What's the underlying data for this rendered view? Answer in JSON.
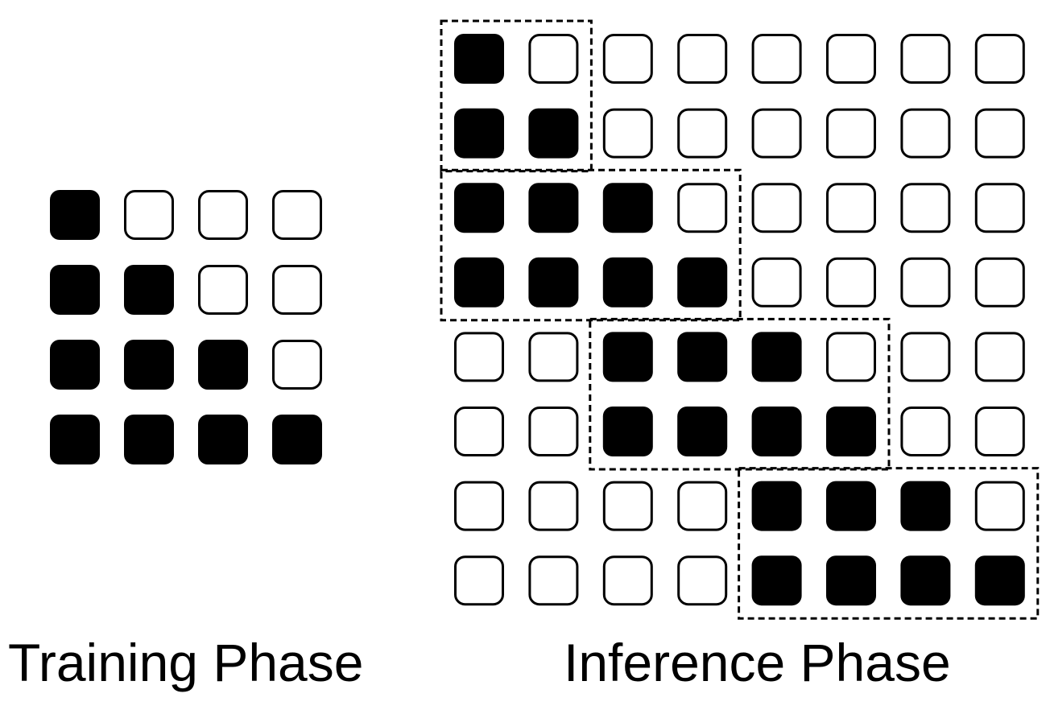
{
  "colors": {
    "filled": "#000000",
    "empty": "#ffffff",
    "stroke": "#000000"
  },
  "training": {
    "caption": "Training Phase",
    "grid": [
      [
        1,
        0,
        0,
        0
      ],
      [
        1,
        1,
        0,
        0
      ],
      [
        1,
        1,
        1,
        0
      ],
      [
        1,
        1,
        1,
        1
      ]
    ]
  },
  "inference": {
    "caption": "Inference Phase",
    "grid": [
      [
        1,
        0,
        0,
        0,
        0,
        0,
        0,
        0
      ],
      [
        1,
        1,
        0,
        0,
        0,
        0,
        0,
        0
      ],
      [
        1,
        1,
        1,
        0,
        0,
        0,
        0,
        0
      ],
      [
        1,
        1,
        1,
        1,
        0,
        0,
        0,
        0
      ],
      [
        0,
        0,
        1,
        1,
        1,
        0,
        0,
        0
      ],
      [
        0,
        0,
        1,
        1,
        1,
        1,
        0,
        0
      ],
      [
        0,
        0,
        0,
        0,
        1,
        1,
        1,
        0
      ],
      [
        0,
        0,
        0,
        0,
        1,
        1,
        1,
        1
      ]
    ],
    "windows": [
      {
        "row": 0,
        "col": 0,
        "rows": 2,
        "cols": 2
      },
      {
        "row": 2,
        "col": 0,
        "rows": 2,
        "cols": 4
      },
      {
        "row": 4,
        "col": 2,
        "rows": 2,
        "cols": 4
      },
      {
        "row": 6,
        "col": 4,
        "rows": 2,
        "cols": 4
      }
    ]
  }
}
